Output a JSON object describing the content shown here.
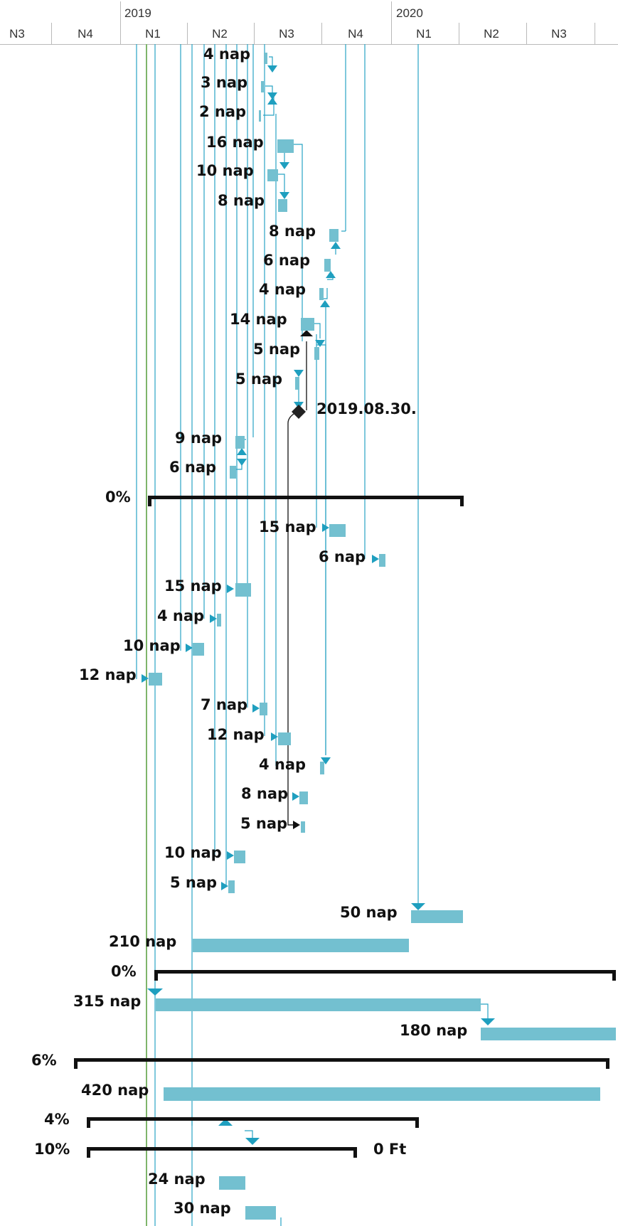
{
  "timescale": {
    "years": [
      "2019",
      "2020"
    ],
    "quarters": [
      "N3",
      "N4",
      "N1",
      "N2",
      "N3",
      "N4",
      "N1",
      "N2",
      "N3"
    ]
  },
  "colors": {
    "task_bar": "#73c0d0",
    "link_line": "#29a3c4",
    "summary_bar": "#111111",
    "milestone": "#222222",
    "today_line": "#7fb56b",
    "grid": "#b9b9b9"
  },
  "tasks": [
    {
      "label": "4 nap",
      "type": "task"
    },
    {
      "label": "3 nap",
      "type": "task"
    },
    {
      "label": "2 nap",
      "type": "task"
    },
    {
      "label": "16 nap",
      "type": "task"
    },
    {
      "label": "10 nap",
      "type": "task"
    },
    {
      "label": "8 nap",
      "type": "task"
    },
    {
      "label": "8 nap",
      "type": "task"
    },
    {
      "label": "6 nap",
      "type": "task"
    },
    {
      "label": "4 nap",
      "type": "task"
    },
    {
      "label": "14 nap",
      "type": "task"
    },
    {
      "label": "5 nap",
      "type": "task"
    },
    {
      "label": "5 nap",
      "type": "task"
    },
    {
      "label": "2019.08.30.",
      "type": "milestone"
    },
    {
      "label": "9 nap",
      "type": "task"
    },
    {
      "label": "6 nap",
      "type": "task"
    },
    {
      "label": "0%",
      "type": "summary"
    },
    {
      "label": "15 nap",
      "type": "task"
    },
    {
      "label": "6 nap",
      "type": "task"
    },
    {
      "label": "15 nap",
      "type": "task"
    },
    {
      "label": "4 nap",
      "type": "task"
    },
    {
      "label": "10 nap",
      "type": "task"
    },
    {
      "label": "12 nap",
      "type": "task"
    },
    {
      "label": "7 nap",
      "type": "task"
    },
    {
      "label": "12 nap",
      "type": "task"
    },
    {
      "label": "4 nap",
      "type": "task"
    },
    {
      "label": "8 nap",
      "type": "task"
    },
    {
      "label": "5 nap",
      "type": "task"
    },
    {
      "label": "10 nap",
      "type": "task"
    },
    {
      "label": "5 nap",
      "type": "task"
    },
    {
      "label": "50 nap",
      "type": "task"
    },
    {
      "label": "210 nap",
      "type": "task"
    },
    {
      "label": "0%",
      "type": "summary"
    },
    {
      "label": "315 nap",
      "type": "task"
    },
    {
      "label": "180 nap",
      "type": "task"
    },
    {
      "label": "6%",
      "type": "summary"
    },
    {
      "label": "420 nap",
      "type": "task"
    },
    {
      "label": "4%",
      "type": "summary"
    },
    {
      "label": "10%",
      "type": "summary",
      "right_label": "0 Ft"
    },
    {
      "label": "24 nap",
      "type": "task"
    },
    {
      "label": "30 nap",
      "type": "task"
    }
  ]
}
